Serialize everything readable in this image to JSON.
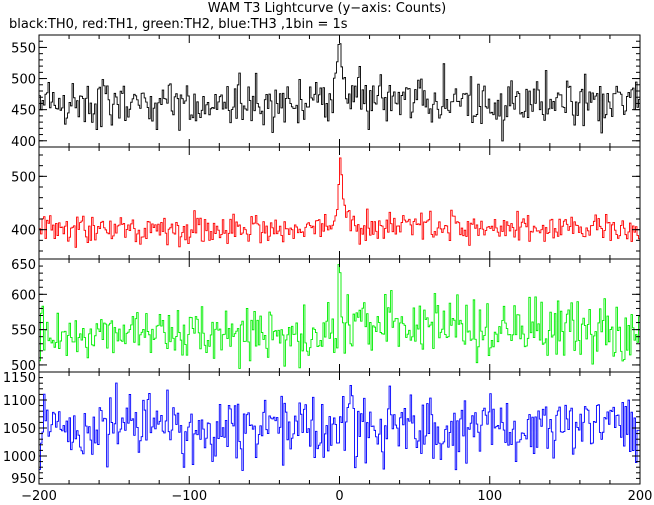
{
  "title": "WAM T3 Lightcurve (y−axis: Counts)",
  "subtitle": "black:TH0, red:TH1, green:TH2, blue:TH3 ,1bin = 1s",
  "chart_data": [
    {
      "type": "line",
      "name": "TH0",
      "color": "#000000",
      "ylim": [
        390,
        570
      ],
      "yticks": [
        400,
        450,
        500,
        550
      ],
      "xlim": [
        -200,
        200
      ],
      "baseline": 462,
      "noise": 20,
      "x": [
        -200,
        -5,
        -3,
        -1,
        0,
        1,
        2,
        3,
        5,
        10,
        200
      ],
      "y": [
        462,
        462,
        500,
        540,
        565,
        548,
        520,
        500,
        480,
        465,
        462
      ]
    },
    {
      "type": "line",
      "name": "TH1",
      "color": "#ff0000",
      "ylim": [
        345,
        555
      ],
      "yticks": [
        400,
        500
      ],
      "xlim": [
        -200,
        200
      ],
      "baseline": 402,
      "noise": 13,
      "x": [
        -200,
        -3,
        -1,
        0,
        1,
        2,
        3,
        5,
        8,
        12,
        200
      ],
      "y": [
        402,
        402,
        460,
        545,
        520,
        480,
        455,
        430,
        415,
        405,
        402
      ]
    },
    {
      "type": "line",
      "name": "TH2",
      "color": "#00ee00",
      "ylim": [
        490,
        650
      ],
      "yticks": [
        500,
        550,
        600,
        650
      ],
      "xlim": [
        -200,
        200
      ],
      "baseline": 545,
      "noise": 22,
      "x": [
        -200,
        -2,
        -1,
        0,
        1,
        2,
        200
      ],
      "y": [
        545,
        545,
        590,
        640,
        600,
        555,
        545
      ]
    },
    {
      "type": "line",
      "name": "TH3",
      "color": "#0000ff",
      "ylim": [
        950,
        1150
      ],
      "yticks": [
        950,
        1000,
        1050,
        1100,
        1150
      ],
      "xlim": [
        -200,
        200
      ],
      "baseline": 1050,
      "noise": 30,
      "x": [
        -200,
        200
      ],
      "y": [
        1050,
        1050
      ]
    }
  ],
  "x_axis": {
    "ticks": [
      -200,
      -100,
      0,
      100,
      200
    ],
    "labels": [
      "−200",
      "−100",
      "0",
      "100",
      "200"
    ]
  },
  "grid": false,
  "legend": "none"
}
